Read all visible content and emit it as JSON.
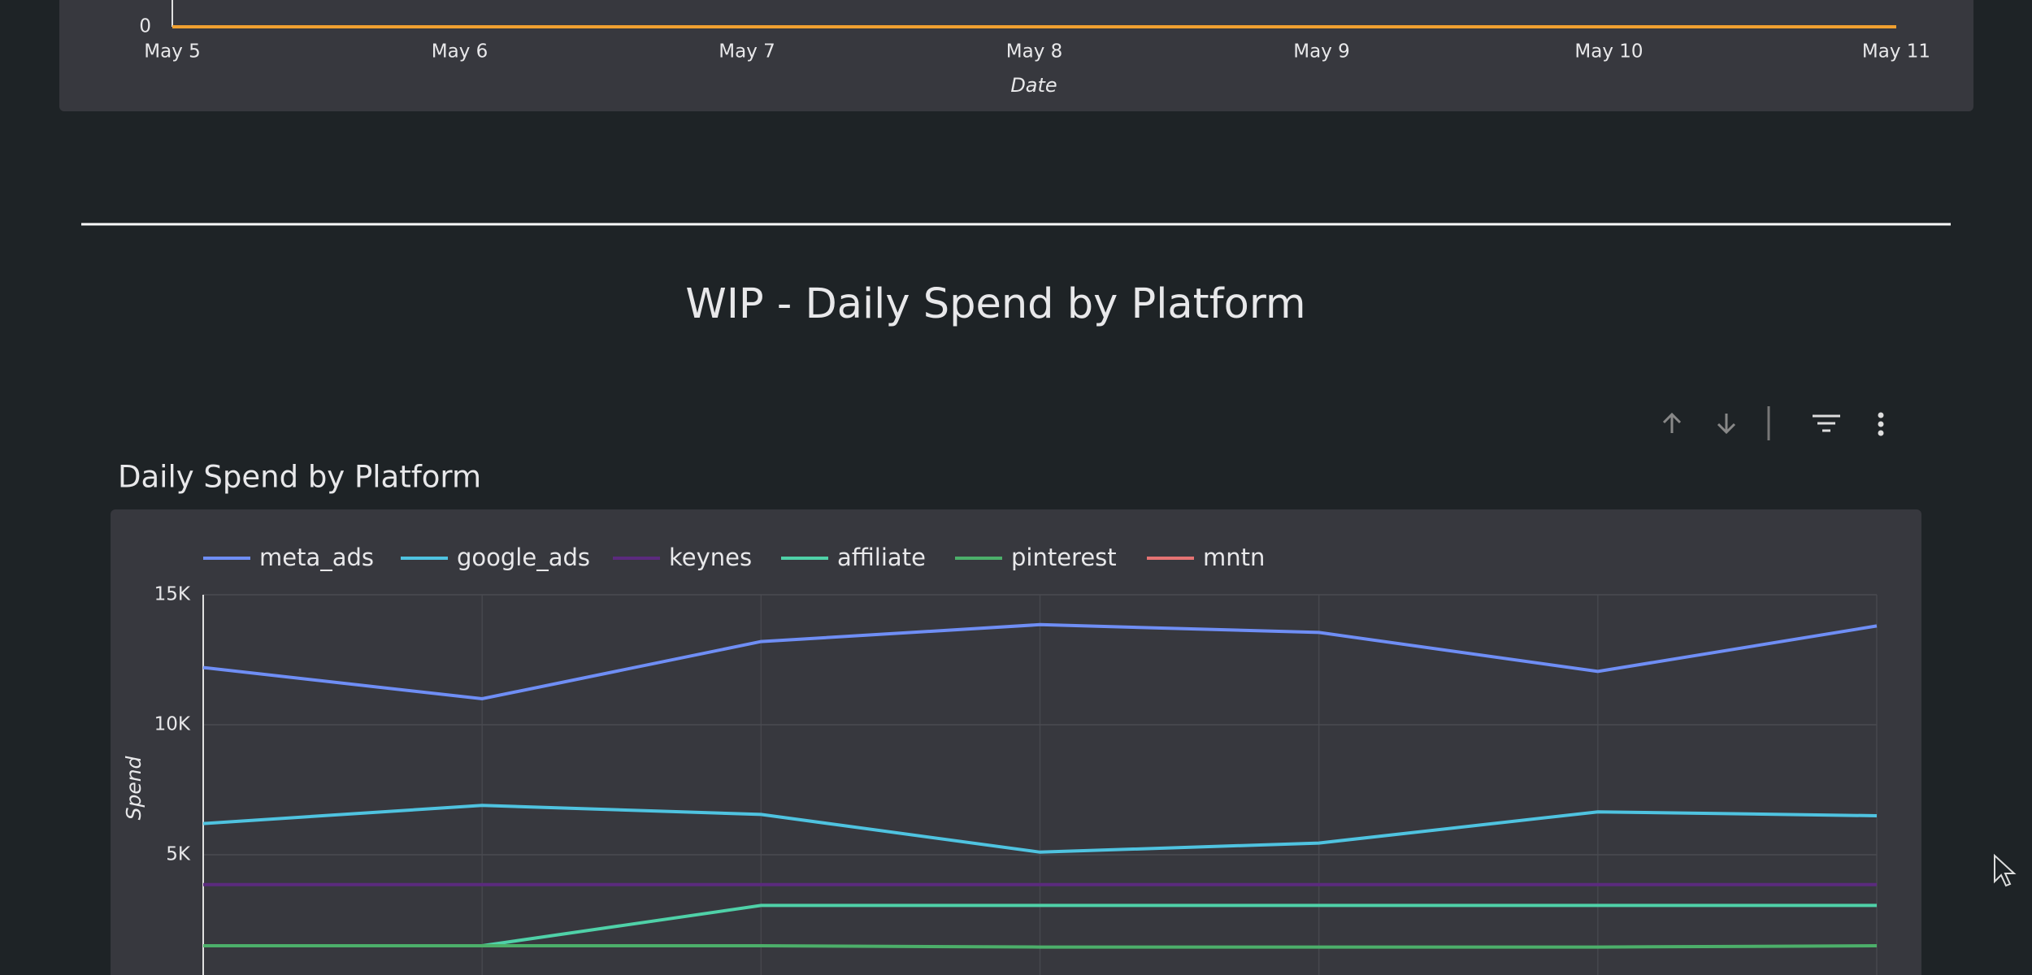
{
  "top_chart": {
    "type": "line",
    "categories": [
      "May 5",
      "May 6",
      "May 7",
      "May 8",
      "May 9",
      "May 10",
      "May 11"
    ],
    "x_label": "Date",
    "yticks": [
      0
    ],
    "series": [
      {
        "color": "#f0a030",
        "values": [
          0,
          0,
          0,
          0,
          0,
          0,
          0
        ]
      }
    ]
  },
  "section_title": "WIP - Daily Spend by Platform",
  "chart_data": {
    "type": "line",
    "title": "Daily Spend by Platform",
    "y_label": "Spend",
    "ylim": [
      0,
      15000
    ],
    "yticks": [
      {
        "value": 5000,
        "label": "5K"
      },
      {
        "value": 10000,
        "label": "10K"
      },
      {
        "value": 15000,
        "label": "15K"
      }
    ],
    "grid": true,
    "series": [
      {
        "name": "meta_ads",
        "color": "#6f8ef5",
        "values": [
          12200,
          11000,
          13200,
          13850,
          13550,
          12050,
          13800
        ]
      },
      {
        "name": "google_ads",
        "color": "#4fc3e0",
        "values": [
          6200,
          6900,
          6550,
          5100,
          5450,
          6650,
          6500
        ]
      },
      {
        "name": "keynes",
        "color": "#5b2a7e",
        "values": [
          3850,
          3850,
          3850,
          3850,
          3850,
          3850,
          3850
        ]
      },
      {
        "name": "affiliate",
        "color": "#4fd1a8",
        "values": [
          1500,
          1500,
          3050,
          3050,
          3050,
          3050,
          3050
        ]
      },
      {
        "name": "pinterest",
        "color": "#4caf6a",
        "values": [
          1500,
          1500,
          1500,
          1450,
          1450,
          1450,
          1500
        ]
      },
      {
        "name": "mntn",
        "color": "#e57373",
        "values": [
          null,
          null,
          null,
          null,
          null,
          null,
          null
        ]
      }
    ]
  }
}
